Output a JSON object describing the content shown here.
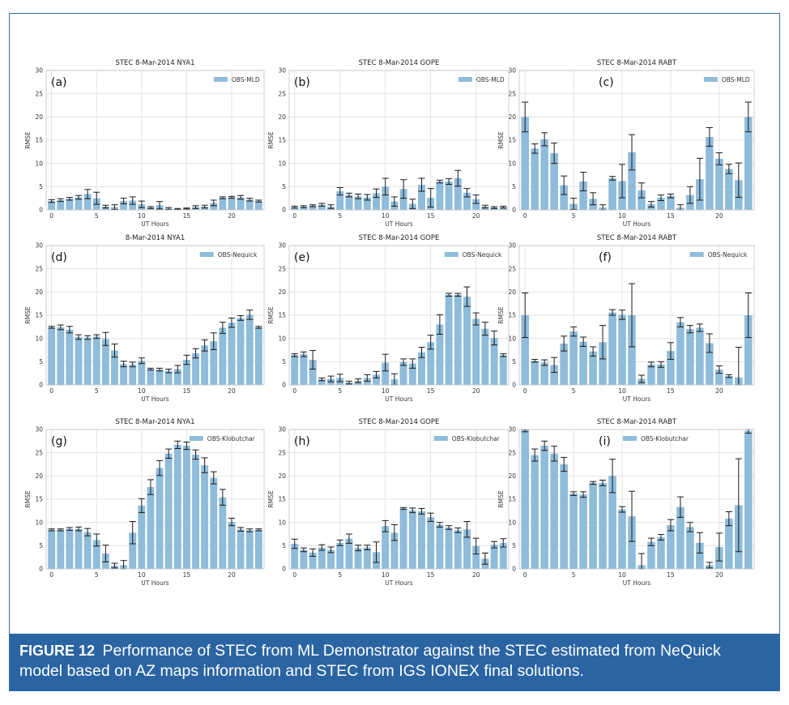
{
  "caption": {
    "label": "FIGURE 12",
    "text": "Performance of STEC from ML Demonstrator against the STEC estimated from NeQuick model based on AZ maps information and STEC from IGS IONEX final solutions."
  },
  "colors": {
    "bar": "#8fbcda",
    "errorbar": "#1a1a1a",
    "grid": "#dddddd",
    "caption_bg": "#2a64a3"
  },
  "chart_data": [
    {
      "type": "bar",
      "panel": "(a)",
      "title": "STEC 8-Mar-2014  NYA1",
      "legend": "OBS-MLD",
      "legend_pos": "top-right",
      "xlabel": "UT Hours",
      "ylabel": "RMSE",
      "ylim": [
        0,
        30
      ],
      "yticks": [
        0,
        5,
        10,
        15,
        20,
        25,
        30
      ],
      "xticks": [
        0,
        5,
        10,
        15,
        20
      ],
      "grid": true,
      "x": [
        0,
        1,
        2,
        3,
        4,
        5,
        6,
        7,
        8,
        9,
        10,
        11,
        12,
        13,
        14,
        15,
        16,
        17,
        18,
        19,
        20,
        21,
        22,
        23
      ],
      "values": [
        1.9,
        2.1,
        2.4,
        2.7,
        3.4,
        2.5,
        0.7,
        0.6,
        1.9,
        2.0,
        1.2,
        0.5,
        1.0,
        0.3,
        0.2,
        0.3,
        0.6,
        0.7,
        1.5,
        2.6,
        2.7,
        2.7,
        2.2,
        1.9
      ],
      "errors": [
        0.3,
        0.3,
        0.3,
        0.4,
        1.0,
        1.3,
        0.3,
        0.5,
        0.6,
        0.8,
        0.7,
        0.2,
        0.8,
        0.2,
        0.1,
        0.1,
        0.3,
        0.3,
        0.6,
        0.2,
        0.2,
        0.4,
        0.3,
        0.2
      ]
    },
    {
      "type": "bar",
      "panel": "(b)",
      "title": "STEC 8-Mar-2014 GOPE",
      "legend": "OBS-MLD",
      "legend_pos": "top-right",
      "xlabel": "UT Hours",
      "ylabel": "RMSE",
      "ylim": [
        0,
        30
      ],
      "yticks": [
        0,
        5,
        10,
        15,
        20,
        25,
        30
      ],
      "xticks": [
        0,
        5,
        10,
        15,
        20
      ],
      "grid": true,
      "x": [
        0,
        1,
        2,
        3,
        4,
        5,
        6,
        7,
        8,
        9,
        10,
        11,
        12,
        13,
        14,
        15,
        16,
        17,
        18,
        19,
        20,
        21,
        22,
        23
      ],
      "values": [
        0.6,
        0.7,
        0.9,
        1.1,
        0.7,
        4.0,
        3.2,
        2.9,
        2.7,
        3.6,
        5.0,
        1.8,
        4.5,
        1.3,
        5.4,
        2.6,
        6.1,
        6.1,
        6.8,
        3.7,
        2.3,
        0.7,
        0.5,
        0.6
      ],
      "errors": [
        0.2,
        0.2,
        0.2,
        0.3,
        0.4,
        0.8,
        0.4,
        0.5,
        0.6,
        0.9,
        1.8,
        1.0,
        2.0,
        1.0,
        1.4,
        2.0,
        0.3,
        0.6,
        1.7,
        0.9,
        0.9,
        0.3,
        0.2,
        0.2
      ]
    },
    {
      "type": "bar",
      "panel": "(c)",
      "title": "STEC 8-Mar-2014  RABT",
      "legend": "OBS-MLD",
      "legend_pos": "top-right",
      "xlabel": "UT Hours",
      "ylabel": "RMSE",
      "ylim": [
        0,
        30
      ],
      "yticks": [
        0,
        5,
        10,
        15,
        20,
        25,
        30
      ],
      "xticks": [
        0,
        5,
        10,
        15,
        20
      ],
      "grid": true,
      "x": [
        0,
        1,
        2,
        3,
        4,
        5,
        6,
        7,
        8,
        9,
        10,
        11,
        12,
        13,
        14,
        15,
        16,
        17,
        18,
        19,
        20,
        21,
        22,
        23
      ],
      "values": [
        20.0,
        13.2,
        15.2,
        12.2,
        5.3,
        1.3,
        6.1,
        2.4,
        0.5,
        6.8,
        6.2,
        12.4,
        4.2,
        1.2,
        2.6,
        3.0,
        0.5,
        3.2,
        6.6,
        15.7,
        11.0,
        8.8,
        6.4,
        20.0
      ],
      "errors": [
        3.2,
        1.0,
        1.4,
        2.2,
        2.0,
        1.2,
        2.0,
        1.3,
        0.6,
        0.4,
        3.6,
        3.8,
        1.6,
        0.6,
        0.6,
        0.4,
        0.6,
        1.8,
        4.5,
        2.0,
        1.3,
        1.0,
        3.7,
        3.2
      ]
    },
    {
      "type": "bar",
      "panel": "(d)",
      "title": "8-Mar-2014  NYA1",
      "legend": "OBS-Nequick",
      "legend_pos": "top-right",
      "xlabel": "UT Hours",
      "ylabel": "RMSE",
      "ylim": [
        0,
        30
      ],
      "yticks": [
        0,
        5,
        10,
        15,
        20,
        25,
        30
      ],
      "xticks": [
        0,
        5,
        10,
        15,
        20
      ],
      "grid": true,
      "x": [
        0,
        1,
        2,
        3,
        4,
        5,
        6,
        7,
        8,
        9,
        10,
        11,
        12,
        13,
        14,
        15,
        16,
        17,
        18,
        19,
        20,
        21,
        22,
        23
      ],
      "values": [
        12.4,
        12.4,
        11.9,
        10.3,
        10.2,
        10.4,
        9.9,
        7.4,
        4.5,
        4.4,
        5.2,
        3.4,
        3.3,
        3.0,
        3.4,
        5.4,
        6.8,
        8.5,
        9.4,
        12.3,
        13.4,
        14.4,
        15.1,
        12.4
      ],
      "errors": [
        0.2,
        0.5,
        0.7,
        0.5,
        0.4,
        0.4,
        1.4,
        1.4,
        0.6,
        0.5,
        0.6,
        0.2,
        0.3,
        0.4,
        0.8,
        1.0,
        1.0,
        1.2,
        1.8,
        1.2,
        1.0,
        0.5,
        1.0,
        0.2
      ]
    },
    {
      "type": "bar",
      "panel": "(e)",
      "title": "STEC 8-Mar-2014 GOPE",
      "legend": "OBS-Nequick",
      "legend_pos": "top-right",
      "xlabel": "UT Hours",
      "ylabel": "RMSE",
      "ylim": [
        0,
        30
      ],
      "yticks": [
        0,
        5,
        10,
        15,
        20,
        25,
        30
      ],
      "xticks": [
        0,
        5,
        10,
        15,
        20
      ],
      "grid": true,
      "x": [
        0,
        1,
        2,
        3,
        4,
        5,
        6,
        7,
        8,
        9,
        10,
        11,
        12,
        13,
        14,
        15,
        16,
        17,
        18,
        19,
        20,
        21,
        22,
        23
      ],
      "values": [
        6.4,
        6.6,
        5.4,
        1.2,
        1.3,
        1.5,
        0.5,
        0.9,
        1.5,
        2.2,
        4.8,
        1.2,
        4.9,
        4.6,
        7.0,
        9.2,
        13.0,
        19.4,
        19.4,
        19.0,
        14.2,
        12.1,
        10.1,
        6.4
      ],
      "errors": [
        0.3,
        0.5,
        2.0,
        0.3,
        0.6,
        0.8,
        0.3,
        0.4,
        0.7,
        0.7,
        1.8,
        1.2,
        0.7,
        1.0,
        1.1,
        1.5,
        2.1,
        0.3,
        0.3,
        2.1,
        1.3,
        1.4,
        1.5,
        0.3
      ]
    },
    {
      "type": "bar",
      "panel": "(f)",
      "title": "STEC 8-Mar-2014  RABT",
      "legend": "OBS-Nequick",
      "legend_pos": "top-right",
      "xlabel": "UT Hours",
      "ylabel": "RMSE",
      "ylim": [
        0,
        30
      ],
      "yticks": [
        0,
        5,
        10,
        15,
        20,
        25,
        30
      ],
      "xticks": [
        0,
        5,
        10,
        15,
        20
      ],
      "grid": true,
      "x": [
        0,
        1,
        2,
        3,
        4,
        5,
        6,
        7,
        8,
        9,
        10,
        11,
        12,
        13,
        14,
        15,
        16,
        17,
        18,
        19,
        20,
        21,
        22,
        23
      ],
      "values": [
        15.0,
        5.2,
        4.8,
        4.3,
        8.9,
        11.5,
        9.3,
        7.2,
        9.2,
        15.6,
        15.1,
        15.0,
        1.3,
        4.4,
        4.4,
        7.3,
        13.5,
        12.0,
        12.3,
        9.0,
        3.3,
        1.9,
        1.6,
        15.0
      ],
      "errors": [
        4.8,
        0.3,
        0.6,
        1.6,
        1.6,
        1.0,
        1.0,
        1.0,
        3.6,
        0.6,
        1.0,
        6.8,
        0.8,
        0.5,
        0.6,
        1.8,
        1.0,
        0.8,
        0.8,
        2.0,
        0.8,
        0.3,
        6.5,
        4.8
      ]
    },
    {
      "type": "bar",
      "panel": "(g)",
      "title": "STEC 8-Mar-2014  NYA1",
      "legend": "OBS-Klobutchar",
      "legend_pos": "top-right",
      "xlabel": "UT Hours",
      "ylabel": "RMSE",
      "ylim": [
        0,
        30
      ],
      "yticks": [
        0,
        5,
        10,
        15,
        20,
        25,
        30
      ],
      "xticks": [
        0,
        5,
        10,
        15,
        20
      ],
      "grid": true,
      "x": [
        0,
        1,
        2,
        3,
        4,
        5,
        6,
        7,
        8,
        9,
        10,
        11,
        12,
        13,
        14,
        15,
        16,
        17,
        18,
        19,
        20,
        21,
        22,
        23
      ],
      "values": [
        8.4,
        8.4,
        8.6,
        8.6,
        7.9,
        6.2,
        3.3,
        0.7,
        0.8,
        7.8,
        13.6,
        17.6,
        21.7,
        24.8,
        26.7,
        26.5,
        24.6,
        22.3,
        19.6,
        15.4,
        10.1,
        8.5,
        8.3,
        8.4
      ],
      "errors": [
        0.2,
        0.2,
        0.3,
        0.4,
        0.8,
        1.3,
        1.8,
        0.5,
        1.0,
        2.4,
        1.5,
        1.6,
        1.6,
        1.0,
        0.8,
        0.8,
        1.0,
        1.6,
        1.3,
        1.7,
        0.8,
        0.4,
        0.3,
        0.2
      ]
    },
    {
      "type": "bar",
      "panel": "(h)",
      "title": "STEC 8-Mar-2014 GOPE",
      "legend": "OBS-Klobutchar",
      "legend_pos": "top-right",
      "xlabel": "UT Hours",
      "ylabel": "RMSE",
      "ylim": [
        0,
        30
      ],
      "yticks": [
        0,
        5,
        10,
        15,
        20,
        25,
        30
      ],
      "xticks": [
        0,
        5,
        10,
        15,
        20
      ],
      "grid": true,
      "x": [
        0,
        1,
        2,
        3,
        4,
        5,
        6,
        7,
        8,
        9,
        10,
        11,
        12,
        13,
        14,
        15,
        16,
        17,
        18,
        19,
        20,
        21,
        22,
        23
      ],
      "values": [
        5.4,
        4.1,
        3.5,
        4.6,
        4.1,
        5.6,
        6.5,
        4.5,
        4.6,
        3.6,
        9.2,
        7.8,
        13.0,
        12.6,
        12.4,
        11.1,
        9.5,
        8.9,
        8.3,
        8.5,
        4.9,
        2.2,
        5.2,
        5.6
      ],
      "errors": [
        1.0,
        0.4,
        0.8,
        0.6,
        0.6,
        0.6,
        1.0,
        0.6,
        0.5,
        2.2,
        1.2,
        1.7,
        0.2,
        0.5,
        0.6,
        0.9,
        0.5,
        0.4,
        0.5,
        1.7,
        1.7,
        1.2,
        0.7,
        0.9
      ]
    },
    {
      "type": "bar",
      "panel": "(i)",
      "title": "STEC 8-Mar-2014  RABT",
      "legend": "OBS-Klobutchar",
      "legend_pos": "top-left",
      "xlabel": "UT Hours",
      "ylabel": "RMSE",
      "ylim": [
        0,
        30
      ],
      "yticks": [
        0,
        5,
        10,
        15,
        20,
        25,
        30
      ],
      "xticks": [
        0,
        5,
        10,
        15,
        20
      ],
      "grid": true,
      "x": [
        0,
        1,
        2,
        3,
        4,
        5,
        6,
        7,
        8,
        9,
        10,
        11,
        12,
        13,
        14,
        15,
        16,
        17,
        18,
        19,
        20,
        21,
        22,
        23
      ],
      "values": [
        30.0,
        24.5,
        26.5,
        24.8,
        22.5,
        16.2,
        16.0,
        18.5,
        18.5,
        20.0,
        12.8,
        11.3,
        0.8,
        5.8,
        6.8,
        9.4,
        13.3,
        9.0,
        5.6,
        0.8,
        4.7,
        10.8,
        13.7,
        29.7
      ],
      "errors": [
        0.5,
        1.3,
        1.0,
        1.6,
        1.5,
        0.4,
        0.6,
        0.3,
        0.6,
        3.6,
        0.6,
        5.4,
        2.5,
        0.8,
        0.6,
        1.2,
        2.2,
        1.0,
        2.2,
        0.6,
        3.0,
        1.5,
        10.0,
        0.5
      ]
    }
  ]
}
